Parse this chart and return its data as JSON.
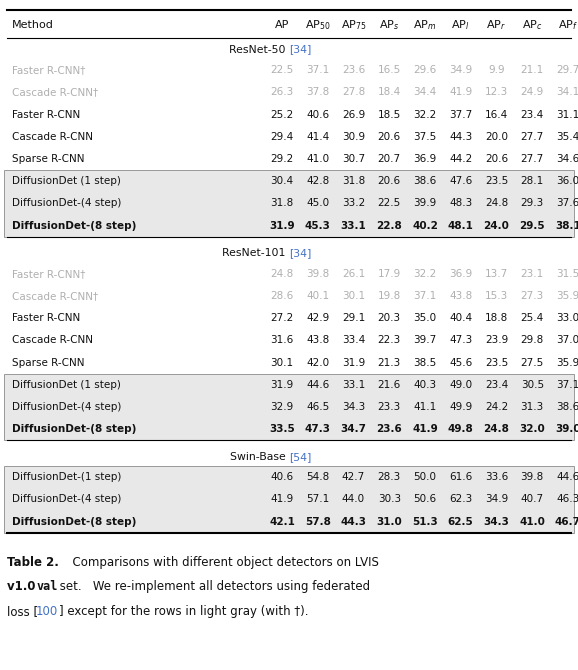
{
  "sections": [
    {
      "header_base": "ResNet-50 ",
      "header_ref": "[34]",
      "rows": [
        {
          "method": "Faster R-CNN†",
          "values": [
            "22.5",
            "37.1",
            "23.6",
            "16.5",
            "29.6",
            "34.9",
            "9.9",
            "21.1",
            "29.7"
          ],
          "gray": true,
          "bold": false,
          "diffusion": false
        },
        {
          "method": "Cascade R-CNN†",
          "values": [
            "26.3",
            "37.8",
            "27.8",
            "18.4",
            "34.4",
            "41.9",
            "12.3",
            "24.9",
            "34.1"
          ],
          "gray": true,
          "bold": false,
          "diffusion": false
        },
        {
          "method": "Faster R-CNN",
          "values": [
            "25.2",
            "40.6",
            "26.9",
            "18.5",
            "32.2",
            "37.7",
            "16.4",
            "23.4",
            "31.1"
          ],
          "gray": false,
          "bold": false,
          "diffusion": false
        },
        {
          "method": "Cascade R-CNN",
          "values": [
            "29.4",
            "41.4",
            "30.9",
            "20.6",
            "37.5",
            "44.3",
            "20.0",
            "27.7",
            "35.4"
          ],
          "gray": false,
          "bold": false,
          "diffusion": false
        },
        {
          "method": "Sparse R-CNN",
          "values": [
            "29.2",
            "41.0",
            "30.7",
            "20.7",
            "36.9",
            "44.2",
            "20.6",
            "27.7",
            "34.6"
          ],
          "gray": false,
          "bold": false,
          "diffusion": false
        },
        {
          "method": "DiffusionDet (1 step)",
          "values": [
            "30.4",
            "42.8",
            "31.8",
            "20.6",
            "38.6",
            "47.6",
            "23.5",
            "28.1",
            "36.0"
          ],
          "gray": false,
          "bold": false,
          "diffusion": true
        },
        {
          "method": "DiffusionDet-(4 step)",
          "values": [
            "31.8",
            "45.0",
            "33.2",
            "22.5",
            "39.9",
            "48.3",
            "24.8",
            "29.3",
            "37.6"
          ],
          "gray": false,
          "bold": false,
          "diffusion": true
        },
        {
          "method": "DiffusionDet-(8 step)",
          "values": [
            "31.9",
            "45.3",
            "33.1",
            "22.8",
            "40.2",
            "48.1",
            "24.0",
            "29.5",
            "38.1"
          ],
          "gray": false,
          "bold": true,
          "diffusion": true
        }
      ]
    },
    {
      "header_base": "ResNet-101 ",
      "header_ref": "[34]",
      "rows": [
        {
          "method": "Faster R-CNN†",
          "values": [
            "24.8",
            "39.8",
            "26.1",
            "17.9",
            "32.2",
            "36.9",
            "13.7",
            "23.1",
            "31.5"
          ],
          "gray": true,
          "bold": false,
          "diffusion": false
        },
        {
          "method": "Cascade R-CNN†",
          "values": [
            "28.6",
            "40.1",
            "30.1",
            "19.8",
            "37.1",
            "43.8",
            "15.3",
            "27.3",
            "35.9"
          ],
          "gray": true,
          "bold": false,
          "diffusion": false
        },
        {
          "method": "Faster R-CNN",
          "values": [
            "27.2",
            "42.9",
            "29.1",
            "20.3",
            "35.0",
            "40.4",
            "18.8",
            "25.4",
            "33.0"
          ],
          "gray": false,
          "bold": false,
          "diffusion": false
        },
        {
          "method": "Cascade R-CNN",
          "values": [
            "31.6",
            "43.8",
            "33.4",
            "22.3",
            "39.7",
            "47.3",
            "23.9",
            "29.8",
            "37.0"
          ],
          "gray": false,
          "bold": false,
          "diffusion": false
        },
        {
          "method": "Sparse R-CNN",
          "values": [
            "30.1",
            "42.0",
            "31.9",
            "21.3",
            "38.5",
            "45.6",
            "23.5",
            "27.5",
            "35.9"
          ],
          "gray": false,
          "bold": false,
          "diffusion": false
        },
        {
          "method": "DiffusionDet (1 step)",
          "values": [
            "31.9",
            "44.6",
            "33.1",
            "21.6",
            "40.3",
            "49.0",
            "23.4",
            "30.5",
            "37.1"
          ],
          "gray": false,
          "bold": false,
          "diffusion": true
        },
        {
          "method": "DiffusionDet-(4 step)",
          "values": [
            "32.9",
            "46.5",
            "34.3",
            "23.3",
            "41.1",
            "49.9",
            "24.2",
            "31.3",
            "38.6"
          ],
          "gray": false,
          "bold": false,
          "diffusion": true
        },
        {
          "method": "DiffusionDet-(8 step)",
          "values": [
            "33.5",
            "47.3",
            "34.7",
            "23.6",
            "41.9",
            "49.8",
            "24.8",
            "32.0",
            "39.0"
          ],
          "gray": false,
          "bold": true,
          "diffusion": true
        }
      ]
    },
    {
      "header_base": "Swin-Base ",
      "header_ref": "[54]",
      "rows": [
        {
          "method": "DiffusionDet-(1 step)",
          "values": [
            "40.6",
            "54.8",
            "42.7",
            "28.3",
            "50.0",
            "61.6",
            "33.6",
            "39.8",
            "44.6"
          ],
          "gray": false,
          "bold": false,
          "diffusion": true
        },
        {
          "method": "DiffusionDet-(4 step)",
          "values": [
            "41.9",
            "57.1",
            "44.0",
            "30.3",
            "50.6",
            "62.3",
            "34.9",
            "40.7",
            "46.3"
          ],
          "gray": false,
          "bold": false,
          "diffusion": true
        },
        {
          "method": "DiffusionDet-(8 step)",
          "values": [
            "42.1",
            "57.8",
            "44.3",
            "31.0",
            "51.3",
            "62.5",
            "34.3",
            "41.0",
            "46.7"
          ],
          "gray": false,
          "bold": true,
          "diffusion": true
        }
      ]
    }
  ],
  "col_headers": [
    "AP",
    "AP$_{50}$",
    "AP$_{75}$",
    "AP$_s$",
    "AP$_m$",
    "AP$_l$",
    "AP$_r$",
    "AP$_c$",
    "AP$_f$"
  ],
  "text_color_gray": "#b0b0b0",
  "text_color_normal": "#111111",
  "blue_color": "#4472c4",
  "diff_bg": "#e8e8e8",
  "fig_width": 5.78,
  "fig_height": 6.7,
  "dpi": 100
}
